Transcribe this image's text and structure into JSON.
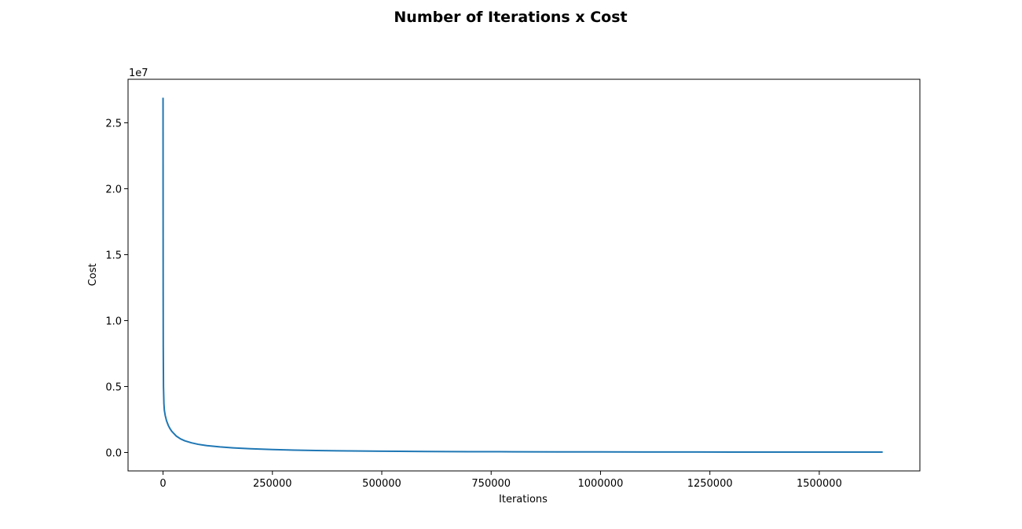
{
  "chart_data": {
    "type": "line",
    "title": "Number of Iterations x Cost",
    "xlabel": "Iterations",
    "ylabel": "Cost",
    "y_multiplier_label": "1e7",
    "y_multiplier": 10000000,
    "xlim": [
      -80000,
      1730000
    ],
    "ylim": [
      -1400000,
      28300000
    ],
    "xticks": [
      0,
      250000,
      500000,
      750000,
      1000000,
      1250000,
      1500000
    ],
    "xtick_labels": [
      "0",
      "250000",
      "500000",
      "750000",
      "1000000",
      "1250000",
      "1500000"
    ],
    "yticks": [
      0,
      5000000,
      10000000,
      15000000,
      20000000,
      25000000
    ],
    "ytick_labels": [
      "0.0",
      "0.5",
      "1.0",
      "1.5",
      "2.0",
      "2.5"
    ],
    "grid": false,
    "series": [
      {
        "color": "#1f77b4",
        "x": [
          0,
          100,
          300,
          500,
          1000,
          2000,
          3000,
          5000,
          8000,
          12000,
          16000,
          20000,
          30000,
          40000,
          50000,
          65000,
          80000,
          100000,
          130000,
          160000,
          200000,
          250000,
          300000,
          350000,
          400000,
          500000,
          600000,
          700000,
          800000,
          900000,
          1000000,
          1100000,
          1200000,
          1300000,
          1400000,
          1500000,
          1600000,
          1645000
        ],
        "y": [
          26900000,
          20000000,
          12000000,
          8000000,
          5000000,
          3700000,
          3200000,
          2800000,
          2400000,
          2050000,
          1800000,
          1600000,
          1250000,
          1030000,
          880000,
          730000,
          620000,
          520000,
          420000,
          350000,
          280000,
          220000,
          180000,
          150000,
          125000,
          95000,
          75000,
          62000,
          52000,
          45000,
          40000,
          36000,
          33000,
          31000,
          29000,
          28000,
          27000,
          26500
        ]
      }
    ]
  }
}
